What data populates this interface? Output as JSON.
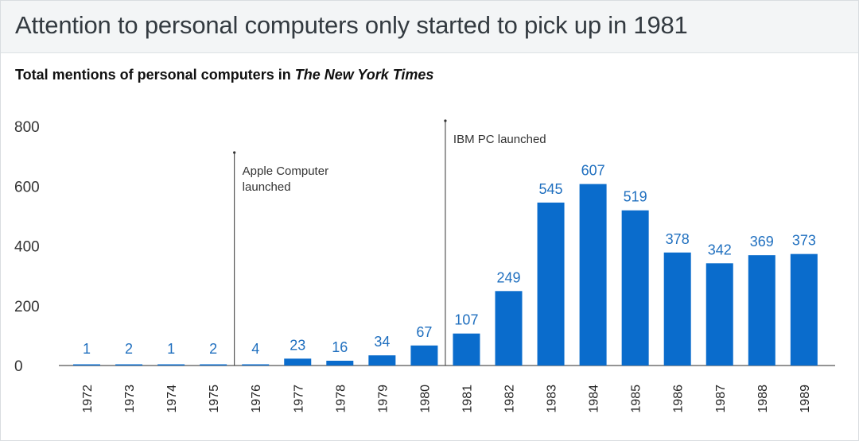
{
  "header": {
    "title": "Attention to personal computers only started to pick up in 1981"
  },
  "subtitle": {
    "prefix": "Total mentions of personal computers in ",
    "publication": "The New York Times"
  },
  "chart_data": {
    "type": "bar",
    "title": "Attention to personal computers only started to pick up in 1981",
    "subtitle": "Total mentions of personal computers in The New York Times",
    "categories": [
      "1972",
      "1973",
      "1974",
      "1975",
      "1976",
      "1977",
      "1978",
      "1979",
      "1980",
      "1981",
      "1982",
      "1983",
      "1984",
      "1985",
      "1986",
      "1987",
      "1988",
      "1989"
    ],
    "values": [
      1,
      2,
      1,
      2,
      4,
      23,
      16,
      34,
      67,
      107,
      249,
      545,
      607,
      519,
      378,
      342,
      369,
      373
    ],
    "ylim": [
      0,
      800
    ],
    "yticks": [
      "0",
      "200",
      "400",
      "600",
      "800"
    ],
    "xlabel": "",
    "ylabel": "",
    "grid": false,
    "bar_color": "#0a6ccc",
    "label_color": "#1f6fbf",
    "annotations": [
      {
        "x": "1976",
        "lines": [
          "Apple Computer",
          "launched"
        ]
      },
      {
        "x": "1981",
        "lines": [
          "IBM PC launched"
        ]
      }
    ]
  }
}
